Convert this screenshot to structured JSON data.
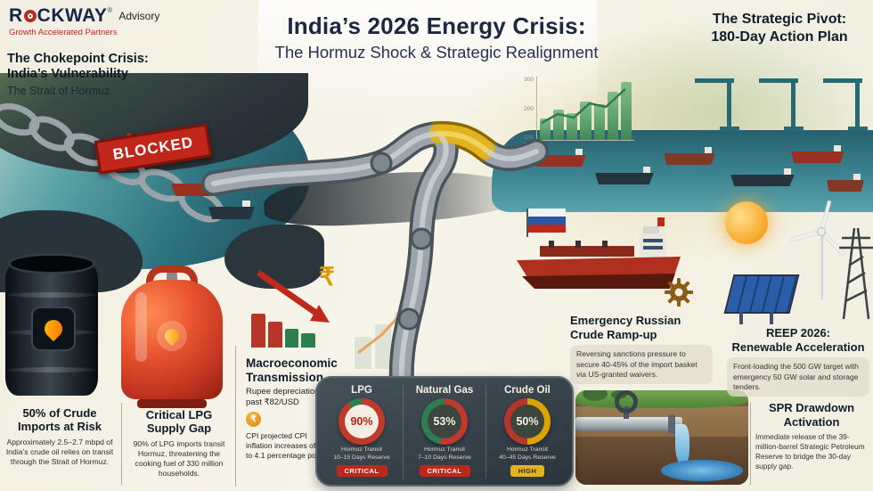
{
  "brand": {
    "word_start": "R",
    "word_end": "CKWAY",
    "registered": "®",
    "suffix": "Advisory",
    "tagline": "Growth Accelerated Partners"
  },
  "header": {
    "title": "India’s 2026 Energy Crisis:",
    "subtitle": "The Hormuz Shock & Strategic Realignment"
  },
  "pivot": {
    "line1": "The Strategic Pivot:",
    "line2": "180-Day Action Plan"
  },
  "chokepoint": {
    "line1": "The Chokepoint Crisis:",
    "line2": "India’s Vulnerability",
    "subtitle": "The Strait of Hormuz",
    "stamp": "BLOCKED"
  },
  "crude_risk": {
    "title": "50% of Crude Imports at Risk",
    "body": "Approximately 2.5–2.7 mbpd of India’s crude oil relies on transit through the Strait of Hormuz."
  },
  "lpg_gap": {
    "title": "Critical LPG Supply Gap",
    "body": "90% of LPG imports transit Hormuz, threatening the cooking fuel of 330 million households."
  },
  "macro": {
    "title": "Macroeconomic Transmission",
    "line1": "Rupee depreciation past ₹82/USD",
    "line2": "CPI projected CPI inflation increases of up to 4.1 percentage points.",
    "rupee_symbol": "₹"
  },
  "gauges": {
    "items": [
      {
        "label": "LPG",
        "value": "90%",
        "pct": 90,
        "arc_color": "#c0392b",
        "rest_color": "#2e7d4f",
        "face_color": "#f3eee0",
        "value_color": "#b81f12",
        "sub1": "Hormuz Transit",
        "sub2": "10–15 Days Reserve",
        "badge": "CRITICAL",
        "badge_bg": "#c0271b",
        "badge_fg": "#ffffff"
      },
      {
        "label": "Natural Gas",
        "value": "53%",
        "pct": 53,
        "arc_color": "#c0392b",
        "rest_color": "#2e7d4f",
        "face_color": "#3c463f",
        "value_color": "#f5f0e4",
        "sub1": "Hormuz Transit",
        "sub2": "7–10 Days Reserve",
        "badge": "CRITICAL",
        "badge_bg": "#c0271b",
        "badge_fg": "#ffffff"
      },
      {
        "label": "Crude Oil",
        "value": "50%",
        "pct": 50,
        "arc_color": "#d9a400",
        "rest_color": "#b8352a",
        "face_color": "#3c463f",
        "value_color": "#f5f0e4",
        "sub1": "Hormuz Transit",
        "sub2": "40–45 Days Reserve",
        "badge": "HIGH",
        "badge_bg": "#e3b31a",
        "badge_fg": "#2b2b2b"
      }
    ]
  },
  "russian": {
    "line1": "Emergency Russian",
    "line2": "Crude Ramp-up",
    "body": "Reversing sanctions pressure to secure 40-45% of the import basket via US-granted waivers."
  },
  "reep": {
    "line1": "REEP 2026:",
    "line2": "Renewable Acceleration",
    "body": "Front-loading the 500 GW target with emergency 50 GW solar and storage tenders."
  },
  "spr": {
    "line1": "SPR Drawdown",
    "line2": "Activation",
    "body": "Immediate release of the 39-million-barrel Strategic Petroleum Reserve to bridge the 30-day supply gap."
  },
  "port_chart": {
    "ticks": [
      "300",
      "200",
      "100"
    ],
    "bars": [
      34,
      48,
      42,
      60,
      56,
      76,
      92
    ]
  },
  "macro_chart": {
    "bars": [
      58,
      44,
      32,
      24
    ],
    "colors": [
      "#b8352a",
      "#b8352a",
      "#2e7d4f",
      "#2e7d4f"
    ]
  },
  "faint_chart": {
    "bars": [
      45,
      62,
      80
    ]
  }
}
